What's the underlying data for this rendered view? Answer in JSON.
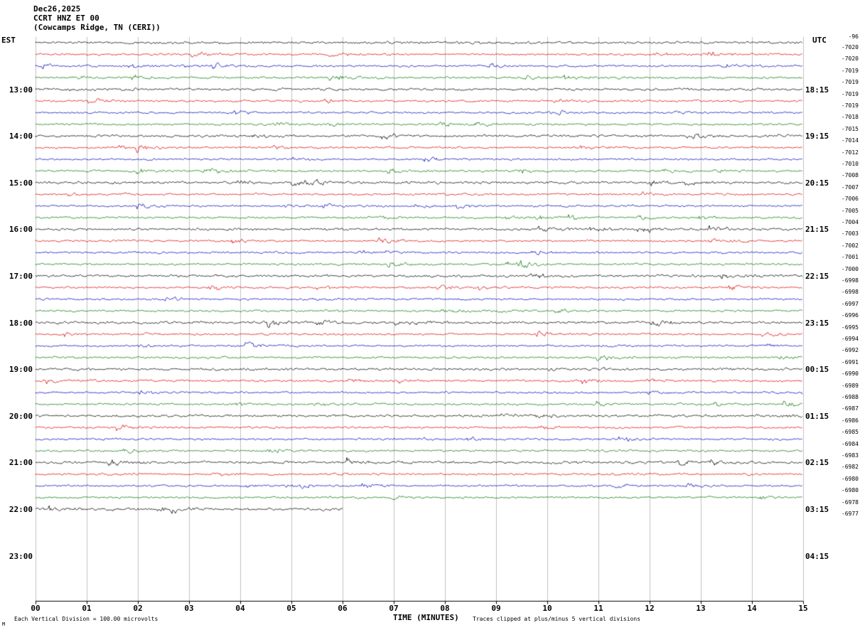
{
  "header": {
    "line1": "Dec26,2025",
    "line2": "CCRT HNZ ET 00",
    "line3": "(Cowcamps Ridge, TN (CERI))"
  },
  "axes": {
    "left_timezone": "EST",
    "right_timezone": "UTC",
    "x_title": "TIME (MINUTES)"
  },
  "footer": {
    "left_note": "Each Vertical Division =  100.00 microvolts",
    "right_note": "Traces clipped at plus/minus 5 vertical divisions",
    "corner_mark": "M"
  },
  "chart_data": {
    "type": "line",
    "subtype": "helicorder-seismogram",
    "station": "CCRT HNZ ET 00",
    "location": "Cowcamps Ridge, TN (CERI)",
    "date": "Dec26,2025",
    "description": "15-minute ambient-noise seismic traces stacked by time; colors cycle black/red/blue/green; amplitudes are background noise read at 100.00 microvolts per vertical division, clipped at plus/minus 5 divisions",
    "x_axis": {
      "title": "TIME (MINUTES)",
      "ticks": [
        "00",
        "01",
        "02",
        "03",
        "04",
        "05",
        "06",
        "07",
        "08",
        "09",
        "10",
        "11",
        "12",
        "13",
        "14",
        "15"
      ],
      "minutes_per_line": 15
    },
    "trace_color_cycle": [
      "#000000",
      "#dd0000",
      "#0000bb",
      "#007700"
    ],
    "num_traces": 41,
    "hour_rows": [
      {
        "row": 4,
        "est": "13:00",
        "utc": "18:15"
      },
      {
        "row": 8,
        "est": "14:00",
        "utc": "19:15"
      },
      {
        "row": 12,
        "est": "15:00",
        "utc": "20:15"
      },
      {
        "row": 16,
        "est": "16:00",
        "utc": "21:15"
      },
      {
        "row": 20,
        "est": "17:00",
        "utc": "22:15"
      },
      {
        "row": 24,
        "est": "18:00",
        "utc": "23:15"
      },
      {
        "row": 28,
        "est": "19:00",
        "utc": "00:15"
      },
      {
        "row": 32,
        "est": "20:00",
        "utc": "01:15"
      },
      {
        "row": 36,
        "est": "21:00",
        "utc": "02:15"
      },
      {
        "row": 40,
        "est": "22:00",
        "utc": "03:15"
      },
      {
        "row": 44,
        "est": "23:00",
        "utc": "04:15"
      }
    ],
    "top_right_value": "-96",
    "right_trace_values": [
      "-7020",
      "-7020",
      "-7019",
      "-7019",
      "-7019",
      "-7019",
      "-7018",
      "-7015",
      "-7014",
      "-7012",
      "-7010",
      "-7008",
      "-7007",
      "-7006",
      "-7005",
      "-7004",
      "-7003",
      "-7002",
      "-7001",
      "-7000",
      "-6998",
      "-6998",
      "-6997",
      "-6996",
      "-6995",
      "-6994",
      "-6992",
      "-6991",
      "-6990",
      "-6989",
      "-6988",
      "-6987",
      "-6986",
      "-6985",
      "-6984",
      "-6983",
      "-6982",
      "-6980",
      "-6980",
      "-6978",
      "-6977"
    ],
    "last_trace": {
      "index": 40,
      "end_minute": 6
    },
    "ylim_per_trace_divisions": [
      -5,
      5
    ]
  }
}
